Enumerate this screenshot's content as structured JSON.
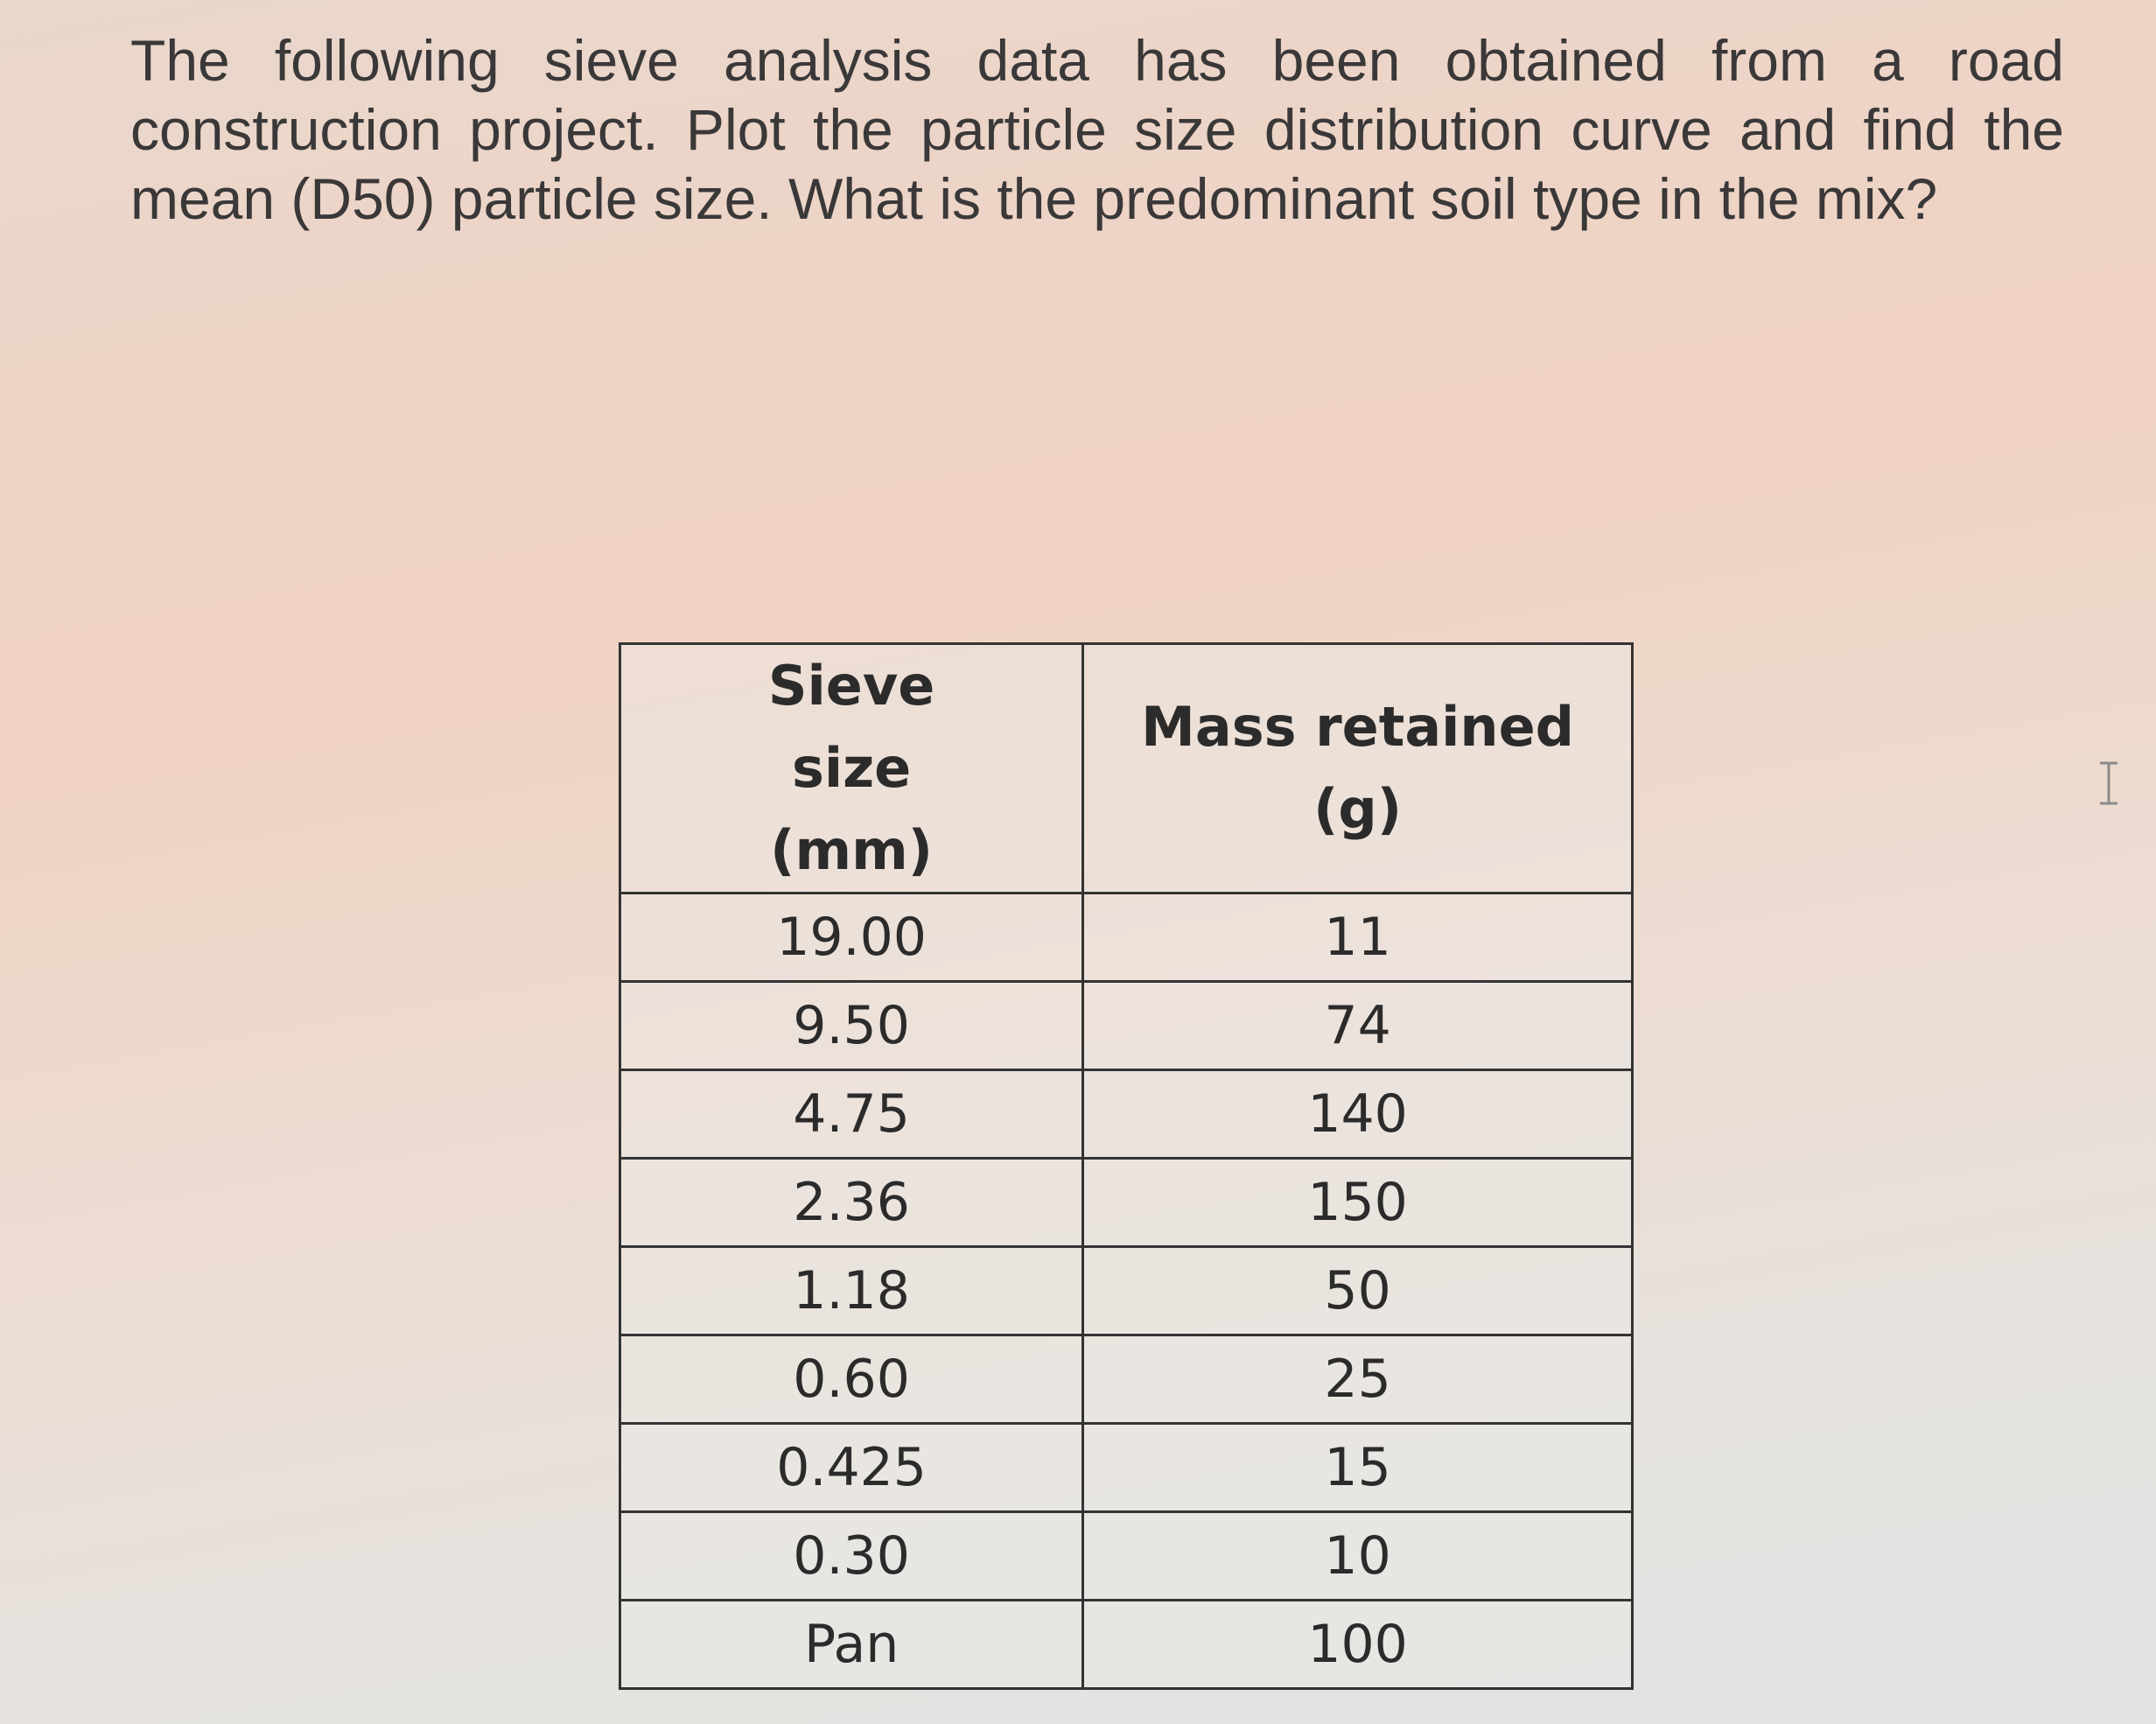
{
  "question": "The following sieve analysis data has been obtained from a road construction project. Plot the particle size distribution curve and find the mean (D50) particle size. What is the predominant soil type in the mix?",
  "table": {
    "header": [
      "Sieve size (mm)",
      "Mass retained (g)"
    ],
    "rows": [
      [
        "19.00",
        "11"
      ],
      [
        "9.50",
        "74"
      ],
      [
        "4.75",
        "140"
      ],
      [
        "2.36",
        "150"
      ],
      [
        "1.18",
        "50"
      ],
      [
        "0.60",
        "25"
      ],
      [
        "0.425",
        "15"
      ],
      [
        "0.30",
        "10"
      ],
      [
        "Pan",
        "100"
      ]
    ]
  }
}
